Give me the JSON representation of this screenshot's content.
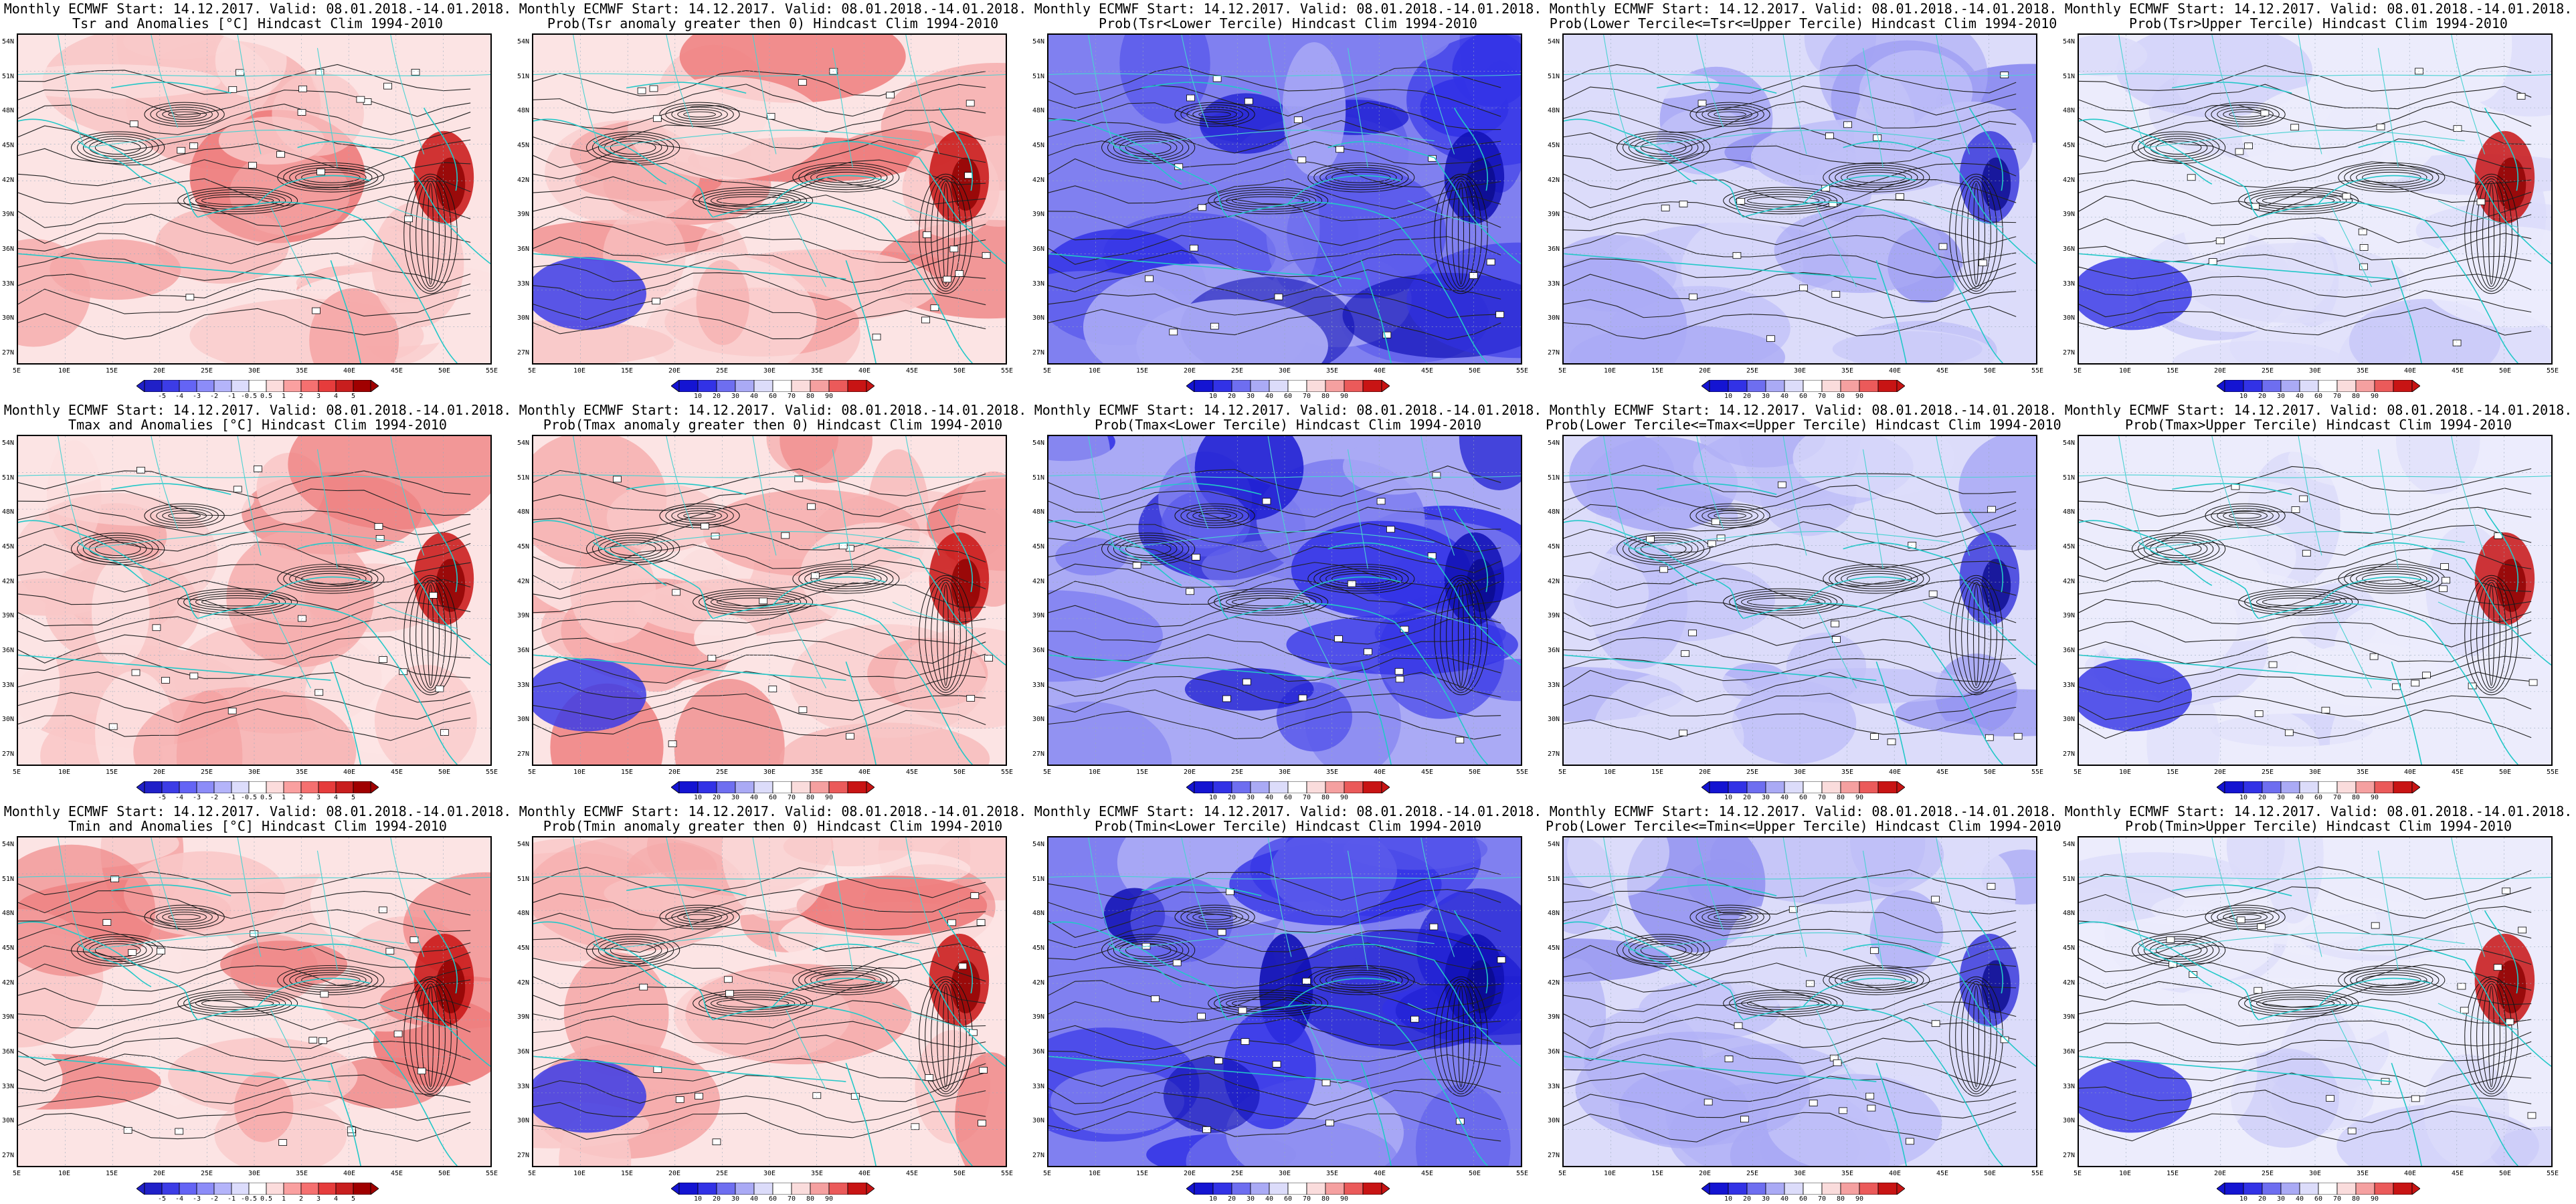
{
  "header_line": "Monthly ECMWF Start: 14.12.2017. Valid: 08.01.2018.-14.01.2018.",
  "lat_labels": [
    "54N",
    "51N",
    "48N",
    "45N",
    "42N",
    "39N",
    "36N",
    "33N",
    "30N",
    "27N"
  ],
  "lon_labels": [
    "5E",
    "10E",
    "15E",
    "20E",
    "25E",
    "30E",
    "35E",
    "40E",
    "45E",
    "50E",
    "55E"
  ],
  "colorbars": {
    "anomaly": {
      "labels": [
        "-5",
        "-4",
        "-3",
        "-2",
        "-1",
        "-0.5",
        "0.5",
        "1",
        "2",
        "3",
        "4",
        "5"
      ],
      "colors": [
        "#2020c8",
        "#3c3ce6",
        "#6464f5",
        "#8c8cf8",
        "#b4b4fa",
        "#dcdcfc",
        "#ffffff",
        "#fcdcdc",
        "#faa0a0",
        "#f57070",
        "#e63c3c",
        "#c81e1e",
        "#a00000"
      ]
    },
    "probability": {
      "labels": [
        "10",
        "20",
        "30",
        "40",
        "60",
        "70",
        "80",
        "90"
      ],
      "colors": [
        "#1414d2",
        "#3232e6",
        "#6e6ef0",
        "#aaaaf5",
        "#dcdcfa",
        "#ffffff",
        "#fadcdc",
        "#f5a0a0",
        "#eb5a5a",
        "#c81414"
      ]
    }
  },
  "rows": [
    {
      "variable": "Tsr",
      "panels": [
        {
          "id": "tsr-anomaly",
          "title": "Tsr and Anomalies [°C] Hindcast Clim 1994-2010",
          "colorbar": "anomaly",
          "field": "anom",
          "fill_level": 0.45
        },
        {
          "id": "tsr-prob-pos",
          "title": "Prob(Tsr anomaly greater then 0) Hindcast Clim 1994-2010",
          "colorbar": "probability",
          "field": "ppos",
          "fill_level": 0.55
        },
        {
          "id": "tsr-prob-lower",
          "title": "Prob(Tsr<Lower Tercile) Hindcast Clim 1994-2010",
          "colorbar": "probability",
          "field": "plow",
          "fill_level": 0.75
        },
        {
          "id": "tsr-prob-middle",
          "title": "Prob(Lower Tercile<=Tsr<=Upper Tercile) Hindcast Clim 1994-2010",
          "colorbar": "probability",
          "field": "pmid",
          "fill_level": 0.5
        },
        {
          "id": "tsr-prob-upper",
          "title": "Prob(Tsr>Upper Tercile) Hindcast Clim 1994-2010",
          "colorbar": "probability",
          "field": "pup",
          "fill_level": 0.35
        }
      ]
    },
    {
      "variable": "Tmax",
      "panels": [
        {
          "id": "tmax-anomaly",
          "title": "Tmax and Anomalies [°C] Hindcast Clim 1994-2010",
          "colorbar": "anomaly",
          "field": "anom",
          "fill_level": 0.5
        },
        {
          "id": "tmax-prob-pos",
          "title": "Prob(Tmax anomaly greater then 0) Hindcast Clim 1994-2010",
          "colorbar": "probability",
          "field": "ppos",
          "fill_level": 0.6
        },
        {
          "id": "tmax-prob-lower",
          "title": "Prob(Tmax<Lower Tercile) Hindcast Clim 1994-2010",
          "colorbar": "probability",
          "field": "plow",
          "fill_level": 0.7
        },
        {
          "id": "tmax-prob-middle",
          "title": "Prob(Lower Tercile<=Tmax<=Upper Tercile) Hindcast Clim 1994-2010",
          "colorbar": "probability",
          "field": "pmid",
          "fill_level": 0.45
        },
        {
          "id": "tmax-prob-upper",
          "title": "Prob(Tmax>Upper Tercile) Hindcast Clim 1994-2010",
          "colorbar": "probability",
          "field": "pup",
          "fill_level": 0.3
        }
      ]
    },
    {
      "variable": "Tmin",
      "panels": [
        {
          "id": "tmin-anomaly",
          "title": "Tmin and Anomalies [°C] Hindcast Clim 1994-2010",
          "colorbar": "anomaly",
          "field": "anom",
          "fill_level": 0.55
        },
        {
          "id": "tmin-prob-pos",
          "title": "Prob(Tmin anomaly greater then 0) Hindcast Clim 1994-2010",
          "colorbar": "probability",
          "field": "ppos",
          "fill_level": 0.55
        },
        {
          "id": "tmin-prob-lower",
          "title": "Prob(Tmin<Lower Tercile) Hindcast Clim 1994-2010",
          "colorbar": "probability",
          "field": "plow",
          "fill_level": 0.8
        },
        {
          "id": "tmin-prob-middle",
          "title": "Prob(Lower Tercile<=Tmin<=Upper Tercile) Hindcast Clim 1994-2010",
          "colorbar": "probability",
          "field": "pmid",
          "fill_level": 0.5
        },
        {
          "id": "tmin-prob-upper",
          "title": "Prob(Tmin>Upper Tercile) Hindcast Clim 1994-2010",
          "colorbar": "probability",
          "field": "pup",
          "fill_level": 0.35
        }
      ]
    }
  ]
}
